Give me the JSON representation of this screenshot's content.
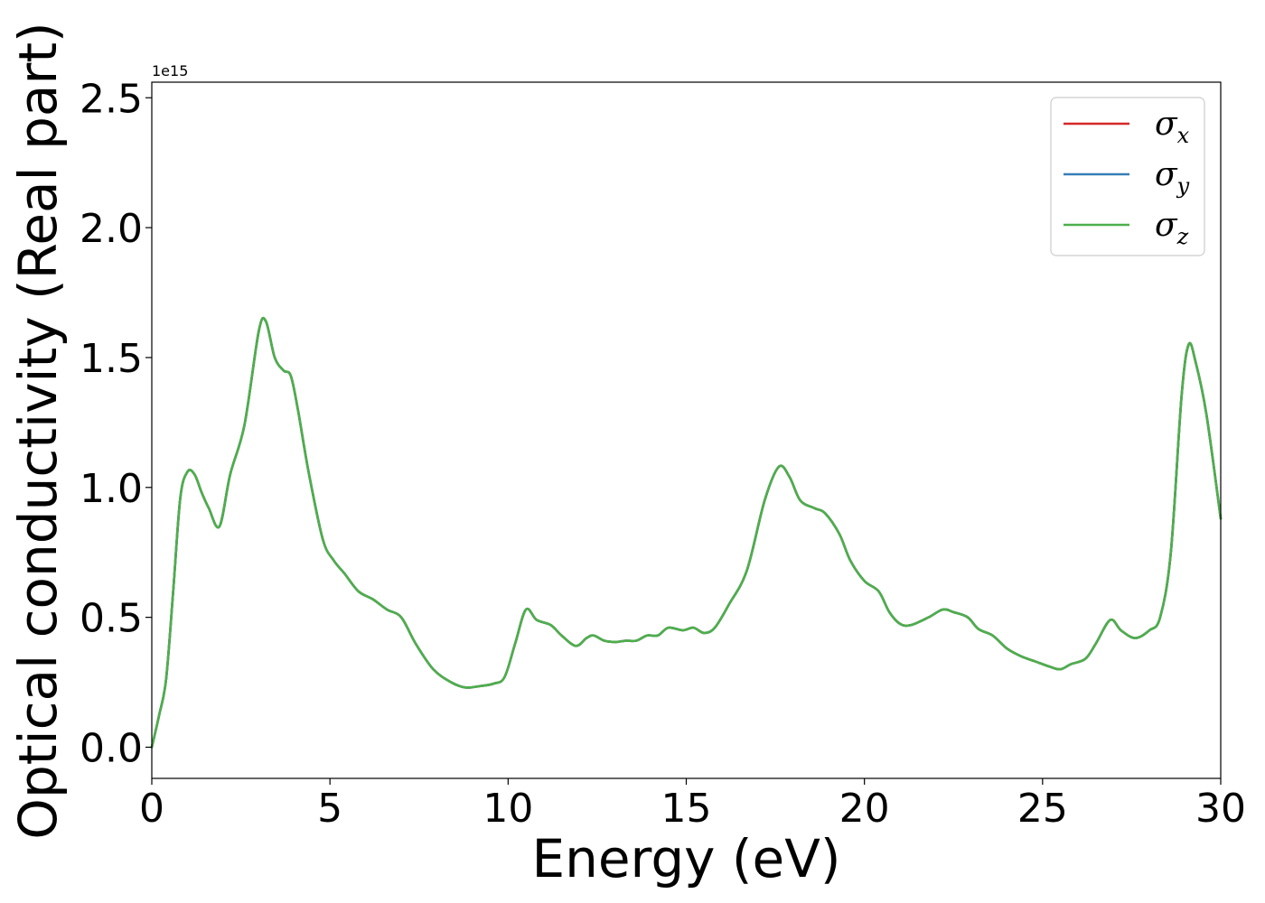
{
  "chart_data": {
    "type": "line",
    "xlabel": "Energy (eV)",
    "ylabel": "Optical conductivity (Real part)",
    "y_offset_label": "1e15",
    "xlim": [
      0,
      30
    ],
    "ylim": [
      -0.12,
      2.56
    ],
    "xticks": [
      0,
      5,
      10,
      15,
      20,
      25,
      30
    ],
    "xtick_labels": [
      "0",
      "5",
      "10",
      "15",
      "20",
      "25",
      "30"
    ],
    "yticks": [
      0.0,
      0.5,
      1.0,
      1.5,
      2.0,
      2.5
    ],
    "ytick_labels": [
      "0.0",
      "0.5",
      "1.0",
      "1.5",
      "2.0",
      "2.5"
    ],
    "grid": false,
    "legend_position": "top-right",
    "x": [
      0,
      0.2,
      0.4,
      0.6,
      0.8,
      1.0,
      1.2,
      1.4,
      1.6,
      1.9,
      2.2,
      2.6,
      3.0,
      3.2,
      3.45,
      3.7,
      3.9,
      4.1,
      4.4,
      4.8,
      5.1,
      5.4,
      5.8,
      6.2,
      6.6,
      7.0,
      7.4,
      7.9,
      8.4,
      8.8,
      9.2,
      9.6,
      9.9,
      10.2,
      10.5,
      10.8,
      11.2,
      11.5,
      11.9,
      12.2,
      12.4,
      12.7,
      13.0,
      13.3,
      13.6,
      13.9,
      14.2,
      14.5,
      14.9,
      15.2,
      15.5,
      15.8,
      16.2,
      16.7,
      17.2,
      17.6,
      17.9,
      18.2,
      18.6,
      18.9,
      19.3,
      19.6,
      20.0,
      20.4,
      20.7,
      21.0,
      21.3,
      21.8,
      22.2,
      22.5,
      22.9,
      23.2,
      23.6,
      24.0,
      24.4,
      24.8,
      25.2,
      25.5,
      25.8,
      26.2,
      26.5,
      26.9,
      27.2,
      27.6,
      28.0,
      28.3,
      28.6,
      28.9,
      29.1,
      29.3,
      29.6,
      30.0
    ],
    "series": [
      {
        "name": "σx",
        "color": "#d62728",
        "values": [
          0.0,
          0.12,
          0.26,
          0.6,
          0.96,
          1.06,
          1.05,
          0.98,
          0.92,
          0.85,
          1.05,
          1.24,
          1.6,
          1.64,
          1.5,
          1.45,
          1.43,
          1.3,
          1.06,
          0.8,
          0.72,
          0.67,
          0.6,
          0.57,
          0.53,
          0.5,
          0.4,
          0.3,
          0.25,
          0.23,
          0.235,
          0.245,
          0.27,
          0.4,
          0.53,
          0.49,
          0.47,
          0.43,
          0.39,
          0.42,
          0.43,
          0.41,
          0.405,
          0.41,
          0.41,
          0.43,
          0.43,
          0.46,
          0.45,
          0.46,
          0.44,
          0.46,
          0.55,
          0.68,
          0.95,
          1.08,
          1.04,
          0.95,
          0.92,
          0.9,
          0.82,
          0.72,
          0.64,
          0.6,
          0.52,
          0.475,
          0.47,
          0.5,
          0.53,
          0.52,
          0.5,
          0.455,
          0.43,
          0.38,
          0.35,
          0.33,
          0.31,
          0.3,
          0.32,
          0.34,
          0.4,
          0.49,
          0.45,
          0.42,
          0.45,
          0.5,
          0.75,
          1.35,
          1.55,
          1.48,
          1.28,
          0.88
        ]
      },
      {
        "name": "σy",
        "color": "#377eb8",
        "values": [
          0.0,
          0.12,
          0.26,
          0.6,
          0.96,
          1.06,
          1.05,
          0.98,
          0.92,
          0.85,
          1.05,
          1.24,
          1.6,
          1.64,
          1.5,
          1.45,
          1.43,
          1.3,
          1.06,
          0.8,
          0.72,
          0.67,
          0.6,
          0.57,
          0.53,
          0.5,
          0.4,
          0.3,
          0.25,
          0.23,
          0.235,
          0.245,
          0.27,
          0.4,
          0.53,
          0.49,
          0.47,
          0.43,
          0.39,
          0.42,
          0.43,
          0.41,
          0.405,
          0.41,
          0.41,
          0.43,
          0.43,
          0.46,
          0.45,
          0.46,
          0.44,
          0.46,
          0.55,
          0.68,
          0.95,
          1.08,
          1.04,
          0.95,
          0.92,
          0.9,
          0.82,
          0.72,
          0.64,
          0.6,
          0.52,
          0.475,
          0.47,
          0.5,
          0.53,
          0.52,
          0.5,
          0.455,
          0.43,
          0.38,
          0.35,
          0.33,
          0.31,
          0.3,
          0.32,
          0.34,
          0.4,
          0.49,
          0.45,
          0.42,
          0.45,
          0.5,
          0.75,
          1.35,
          1.55,
          1.48,
          1.28,
          0.88
        ]
      },
      {
        "name": "σz",
        "color": "#4daf4a",
        "values": [
          0.0,
          0.12,
          0.26,
          0.6,
          0.96,
          1.06,
          1.05,
          0.98,
          0.92,
          0.85,
          1.05,
          1.24,
          1.6,
          1.64,
          1.5,
          1.45,
          1.43,
          1.3,
          1.06,
          0.8,
          0.72,
          0.67,
          0.6,
          0.57,
          0.53,
          0.5,
          0.4,
          0.3,
          0.25,
          0.23,
          0.235,
          0.245,
          0.27,
          0.4,
          0.53,
          0.49,
          0.47,
          0.43,
          0.39,
          0.42,
          0.43,
          0.41,
          0.405,
          0.41,
          0.41,
          0.43,
          0.43,
          0.46,
          0.45,
          0.46,
          0.44,
          0.46,
          0.55,
          0.68,
          0.95,
          1.08,
          1.04,
          0.95,
          0.92,
          0.9,
          0.82,
          0.72,
          0.64,
          0.6,
          0.52,
          0.475,
          0.47,
          0.5,
          0.53,
          0.52,
          0.5,
          0.455,
          0.43,
          0.38,
          0.35,
          0.33,
          0.31,
          0.3,
          0.32,
          0.34,
          0.4,
          0.49,
          0.45,
          0.42,
          0.45,
          0.5,
          0.75,
          1.35,
          1.55,
          1.48,
          1.28,
          0.88
        ]
      }
    ],
    "legend": [
      {
        "symbol": "σ",
        "subscript": "x",
        "color": "#d62728"
      },
      {
        "symbol": "σ",
        "subscript": "y",
        "color": "#377eb8"
      },
      {
        "symbol": "σ",
        "subscript": "z",
        "color": "#4daf4a"
      }
    ]
  }
}
